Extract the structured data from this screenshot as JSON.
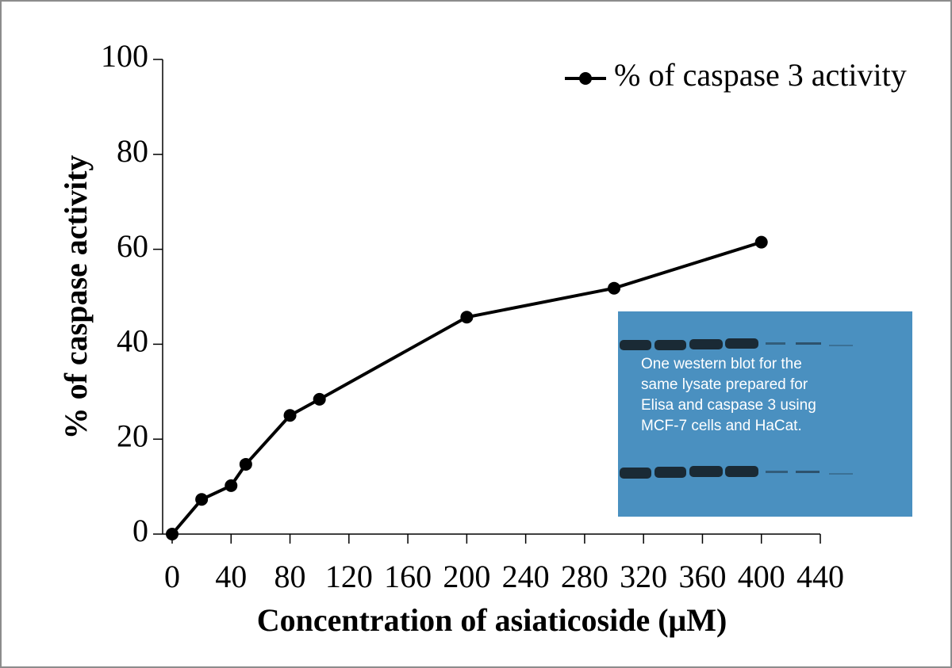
{
  "chart_data": {
    "type": "line",
    "x_label": "Concentration of asiaticoside (μM)",
    "y_label": "% of caspase activity",
    "x": [
      0,
      20,
      40,
      50,
      80,
      100,
      200,
      300,
      400
    ],
    "series": [
      {
        "name": "% of caspase 3 activity",
        "color": "#000000",
        "values": [
          0,
          7.3,
          10.2,
          14.7,
          25,
          28.4,
          45.7,
          51.8,
          61.5
        ]
      }
    ],
    "xlim": [
      0,
      440
    ],
    "xticks": [
      0,
      40,
      80,
      120,
      160,
      200,
      240,
      280,
      320,
      360,
      400,
      440
    ],
    "ylim": [
      0,
      100
    ],
    "yticks": [
      0,
      20,
      40,
      60,
      80,
      100
    ],
    "legend": "upper right",
    "annotation": [
      "One western blot for the",
      "same lysate prepared for",
      "Elisa and caspase 3 using",
      "MCF-7 cells and HaCat."
    ]
  }
}
